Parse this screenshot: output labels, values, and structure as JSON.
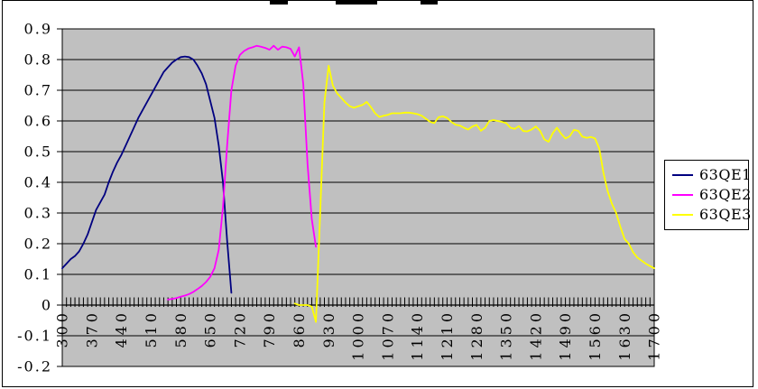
{
  "chart_data": {
    "type": "line",
    "title": "",
    "xlabel": "",
    "ylabel": "",
    "grid": true,
    "plot_background": "#c0c0c0",
    "gridline_color": "#000000",
    "x_axis": {
      "range": [
        300,
        1700
      ],
      "minor_tick_step": 10,
      "tick_labels": [
        "300",
        "370",
        "440",
        "510",
        "580",
        "650",
        "720",
        "790",
        "860",
        "930",
        "1000",
        "1070",
        "1140",
        "1210",
        "1280",
        "1350",
        "1420",
        "1490",
        "1560",
        "1630",
        "1700"
      ]
    },
    "y_axis": {
      "range": [
        -0.2,
        0.9
      ],
      "tick_labels": [
        "0.9",
        "0.8",
        "0.7",
        "0.6",
        "0.5",
        "0.4",
        "0.3",
        "0.2",
        "0.1",
        "0",
        "-0.1",
        "-0.2"
      ]
    },
    "legend": {
      "position": "right",
      "background": "#ffffff",
      "border_color": "#000000"
    },
    "series": [
      {
        "name": "63QE1",
        "color": "#000080",
        "points": [
          [
            300,
            0.12
          ],
          [
            310,
            0.135
          ],
          [
            320,
            0.15
          ],
          [
            330,
            0.16
          ],
          [
            340,
            0.175
          ],
          [
            350,
            0.2
          ],
          [
            360,
            0.23
          ],
          [
            370,
            0.27
          ],
          [
            380,
            0.31
          ],
          [
            390,
            0.335
          ],
          [
            400,
            0.36
          ],
          [
            410,
            0.4
          ],
          [
            420,
            0.435
          ],
          [
            430,
            0.465
          ],
          [
            440,
            0.49
          ],
          [
            450,
            0.52
          ],
          [
            460,
            0.55
          ],
          [
            470,
            0.58
          ],
          [
            480,
            0.61
          ],
          [
            490,
            0.635
          ],
          [
            500,
            0.66
          ],
          [
            510,
            0.685
          ],
          [
            520,
            0.71
          ],
          [
            530,
            0.735
          ],
          [
            540,
            0.76
          ],
          [
            550,
            0.775
          ],
          [
            560,
            0.79
          ],
          [
            570,
            0.8
          ],
          [
            580,
            0.808
          ],
          [
            590,
            0.81
          ],
          [
            600,
            0.808
          ],
          [
            610,
            0.8
          ],
          [
            620,
            0.78
          ],
          [
            630,
            0.755
          ],
          [
            640,
            0.72
          ],
          [
            650,
            0.665
          ],
          [
            660,
            0.61
          ],
          [
            670,
            0.52
          ],
          [
            680,
            0.4
          ],
          [
            690,
            0.21
          ],
          [
            700,
            0.04
          ]
        ]
      },
      {
        "name": "63QE2",
        "color": "#ff00ff",
        "points": [
          [
            550,
            0.018
          ],
          [
            560,
            0.02
          ],
          [
            570,
            0.023
          ],
          [
            580,
            0.027
          ],
          [
            590,
            0.031
          ],
          [
            600,
            0.036
          ],
          [
            610,
            0.043
          ],
          [
            620,
            0.052
          ],
          [
            630,
            0.062
          ],
          [
            640,
            0.075
          ],
          [
            650,
            0.092
          ],
          [
            660,
            0.12
          ],
          [
            670,
            0.18
          ],
          [
            680,
            0.32
          ],
          [
            690,
            0.52
          ],
          [
            700,
            0.7
          ],
          [
            710,
            0.78
          ],
          [
            720,
            0.815
          ],
          [
            730,
            0.828
          ],
          [
            740,
            0.836
          ],
          [
            750,
            0.84
          ],
          [
            760,
            0.845
          ],
          [
            770,
            0.842
          ],
          [
            780,
            0.838
          ],
          [
            790,
            0.832
          ],
          [
            800,
            0.845
          ],
          [
            810,
            0.832
          ],
          [
            820,
            0.842
          ],
          [
            830,
            0.84
          ],
          [
            840,
            0.835
          ],
          [
            850,
            0.81
          ],
          [
            860,
            0.84
          ],
          [
            870,
            0.72
          ],
          [
            880,
            0.46
          ],
          [
            890,
            0.28
          ],
          [
            900,
            0.19
          ]
        ]
      },
      {
        "name": "63QE3",
        "color": "#ffff00",
        "points": [
          [
            850,
            0.005
          ],
          [
            860,
            0.0
          ],
          [
            870,
            0.0
          ],
          [
            880,
            0.0
          ],
          [
            890,
            -0.005
          ],
          [
            900,
            -0.055
          ],
          [
            910,
            0.3
          ],
          [
            920,
            0.66
          ],
          [
            930,
            0.78
          ],
          [
            940,
            0.715
          ],
          [
            950,
            0.69
          ],
          [
            960,
            0.675
          ],
          [
            970,
            0.66
          ],
          [
            980,
            0.648
          ],
          [
            990,
            0.643
          ],
          [
            1000,
            0.648
          ],
          [
            1010,
            0.652
          ],
          [
            1020,
            0.662
          ],
          [
            1030,
            0.645
          ],
          [
            1040,
            0.625
          ],
          [
            1050,
            0.613
          ],
          [
            1060,
            0.617
          ],
          [
            1070,
            0.62
          ],
          [
            1080,
            0.625
          ],
          [
            1090,
            0.625
          ],
          [
            1100,
            0.625
          ],
          [
            1110,
            0.627
          ],
          [
            1120,
            0.627
          ],
          [
            1130,
            0.625
          ],
          [
            1140,
            0.622
          ],
          [
            1150,
            0.617
          ],
          [
            1160,
            0.607
          ],
          [
            1170,
            0.597
          ],
          [
            1180,
            0.593
          ],
          [
            1190,
            0.612
          ],
          [
            1200,
            0.615
          ],
          [
            1210,
            0.61
          ],
          [
            1220,
            0.597
          ],
          [
            1230,
            0.588
          ],
          [
            1240,
            0.585
          ],
          [
            1250,
            0.578
          ],
          [
            1260,
            0.572
          ],
          [
            1270,
            0.582
          ],
          [
            1280,
            0.587
          ],
          [
            1290,
            0.568
          ],
          [
            1300,
            0.578
          ],
          [
            1310,
            0.6
          ],
          [
            1320,
            0.603
          ],
          [
            1330,
            0.6
          ],
          [
            1340,
            0.597
          ],
          [
            1350,
            0.593
          ],
          [
            1360,
            0.578
          ],
          [
            1370,
            0.574
          ],
          [
            1380,
            0.583
          ],
          [
            1390,
            0.567
          ],
          [
            1400,
            0.566
          ],
          [
            1410,
            0.572
          ],
          [
            1420,
            0.582
          ],
          [
            1430,
            0.568
          ],
          [
            1440,
            0.54
          ],
          [
            1450,
            0.532
          ],
          [
            1460,
            0.56
          ],
          [
            1470,
            0.578
          ],
          [
            1480,
            0.558
          ],
          [
            1490,
            0.543
          ],
          [
            1500,
            0.55
          ],
          [
            1510,
            0.571
          ],
          [
            1520,
            0.568
          ],
          [
            1530,
            0.549
          ],
          [
            1540,
            0.545
          ],
          [
            1550,
            0.548
          ],
          [
            1560,
            0.543
          ],
          [
            1570,
            0.51
          ],
          [
            1580,
            0.43
          ],
          [
            1590,
            0.37
          ],
          [
            1600,
            0.33
          ],
          [
            1610,
            0.3
          ],
          [
            1620,
            0.255
          ],
          [
            1630,
            0.215
          ],
          [
            1640,
            0.2
          ],
          [
            1650,
            0.172
          ],
          [
            1660,
            0.155
          ],
          [
            1670,
            0.145
          ],
          [
            1680,
            0.135
          ],
          [
            1690,
            0.127
          ],
          [
            1700,
            0.12
          ]
        ]
      }
    ]
  }
}
